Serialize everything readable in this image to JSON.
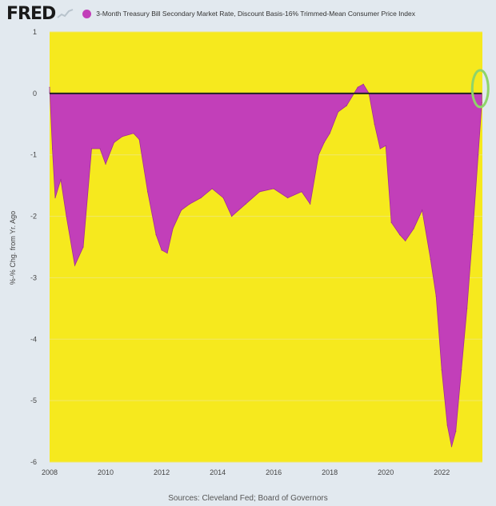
{
  "header": {
    "logo": "FRED",
    "legend_label": "3-Month Treasury Bill Secondary Market Rate, Discount Basis-16% Trimmed-Mean Consumer Price Index"
  },
  "colors": {
    "background": "#e2e9ef",
    "plot_background": "#f6e91e",
    "series_fill": "#c23fb9",
    "zero_line": "#222222",
    "annotation_circle": "#8fd46a"
  },
  "source": "Sources: Cleveland Fed; Board of Governors",
  "chart_data": {
    "type": "area",
    "title": "",
    "xlabel": "",
    "ylabel": "%-% Chg. from Yr. Ago",
    "xlim": [
      2008,
      2023.45
    ],
    "ylim": [
      -6,
      1
    ],
    "x_ticks": [
      "2008",
      "2010",
      "2012",
      "2014",
      "2016",
      "2018",
      "2020",
      "2022"
    ],
    "y_ticks": [
      "1",
      "0",
      "-1",
      "-2",
      "-3",
      "-4",
      "-5",
      "-6"
    ],
    "grid": true,
    "legend": "top",
    "annotations": [
      "green circle around latest value near 0"
    ],
    "series": [
      {
        "name": "3-Month Treasury Bill Secondary Market Rate, Discount Basis-16% Trimmed-Mean Consumer Price Index",
        "x": [
          2008.0,
          2008.1,
          2008.2,
          2008.4,
          2008.6,
          2008.9,
          2009.2,
          2009.5,
          2009.8,
          2010.0,
          2010.3,
          2010.6,
          2011.0,
          2011.2,
          2011.5,
          2011.8,
          2012.0,
          2012.2,
          2012.4,
          2012.7,
          2013.0,
          2013.4,
          2013.8,
          2014.2,
          2014.5,
          2015.0,
          2015.5,
          2016.0,
          2016.5,
          2017.0,
          2017.3,
          2017.6,
          2017.8,
          2018.0,
          2018.3,
          2018.6,
          2019.0,
          2019.2,
          2019.4,
          2019.6,
          2019.8,
          2020.0,
          2020.2,
          2020.5,
          2020.7,
          2021.0,
          2021.3,
          2021.6,
          2021.8,
          2022.0,
          2022.2,
          2022.35,
          2022.5,
          2022.7,
          2022.9,
          2023.1,
          2023.3,
          2023.43
        ],
        "y": [
          0.1,
          -0.9,
          -1.7,
          -1.4,
          -2.0,
          -2.8,
          -2.5,
          -0.9,
          -0.9,
          -1.15,
          -0.8,
          -0.7,
          -0.65,
          -0.75,
          -1.6,
          -2.3,
          -2.55,
          -2.6,
          -2.2,
          -1.9,
          -1.8,
          -1.7,
          -1.55,
          -1.7,
          -2.0,
          -1.8,
          -1.6,
          -1.55,
          -1.7,
          -1.6,
          -1.8,
          -1.0,
          -0.8,
          -0.65,
          -0.3,
          -0.2,
          0.1,
          0.15,
          0.0,
          -0.5,
          -0.9,
          -0.85,
          -2.1,
          -2.3,
          -2.4,
          -2.2,
          -1.9,
          -2.7,
          -3.3,
          -4.5,
          -5.4,
          -5.75,
          -5.5,
          -4.5,
          -3.5,
          -2.3,
          -1.0,
          -0.15
        ]
      }
    ]
  }
}
